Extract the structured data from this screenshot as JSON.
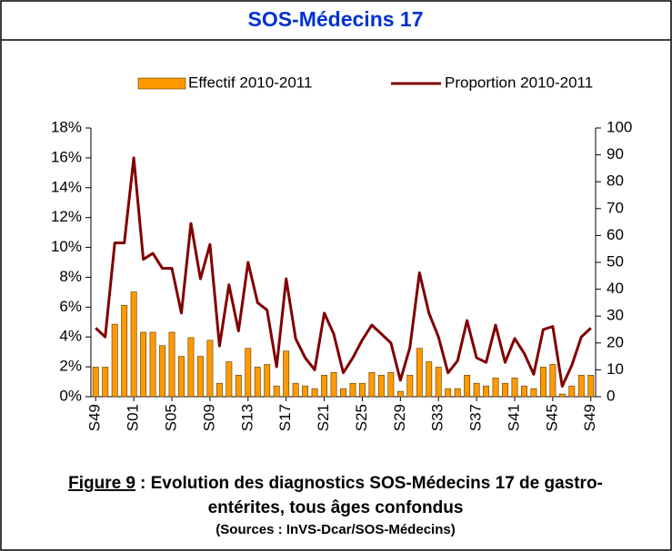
{
  "chart_data": {
    "type": "bar-line",
    "title": "SOS-Médecins 17",
    "categories": [
      "S49",
      null,
      null,
      null,
      "S01",
      null,
      null,
      null,
      "S05",
      null,
      null,
      null,
      "S09",
      null,
      null,
      null,
      "S13",
      null,
      null,
      null,
      "S17",
      null,
      null,
      null,
      "S21",
      null,
      null,
      null,
      "S25",
      null,
      null,
      null,
      "S29",
      null,
      null,
      null,
      "S33",
      null,
      null,
      null,
      "S37",
      null,
      null,
      null,
      "S41",
      null,
      null,
      null,
      "S45",
      null,
      null,
      null,
      "S49"
    ],
    "series": [
      {
        "name": "Effectif 2010-2011",
        "color": "#FF9900",
        "axis": "y2",
        "values": [
          11,
          11,
          27,
          34,
          39,
          24,
          24,
          19,
          24,
          15,
          22,
          15,
          21,
          5,
          13,
          8,
          18,
          11,
          12,
          4,
          17,
          5,
          4,
          3,
          8,
          9,
          3,
          5,
          5,
          9,
          8,
          9,
          2,
          8,
          18,
          13,
          11,
          3,
          3,
          8,
          5,
          4,
          7,
          5,
          7,
          4,
          3,
          11,
          12,
          1,
          4,
          8,
          8
        ]
      },
      {
        "name": "Proportion 2010-2011",
        "color": "#800000",
        "axis": "y",
        "values": [
          4.6,
          4.0,
          10.3,
          10.3,
          16.0,
          9.2,
          9.6,
          8.6,
          8.6,
          5.6,
          11.6,
          7.9,
          10.2,
          3.4,
          7.5,
          4.4,
          9.0,
          6.3,
          5.8,
          2.0,
          7.9,
          3.9,
          2.6,
          1.8,
          5.6,
          4.2,
          1.6,
          2.6,
          3.8,
          4.8,
          4.2,
          3.6,
          1.1,
          3.3,
          8.3,
          5.6,
          4.0,
          1.6,
          2.4,
          5.1,
          2.6,
          2.3,
          4.8,
          2.3,
          3.9,
          2.9,
          1.5,
          4.5,
          4.7,
          0.7,
          2.1,
          4.0,
          4.6
        ]
      }
    ],
    "ylim": [
      0,
      18
    ],
    "yticks": [
      {
        "value": 0,
        "label": "0%"
      },
      {
        "value": 2,
        "label": "2%"
      },
      {
        "value": 4,
        "label": "4%"
      },
      {
        "value": 6,
        "label": "6%"
      },
      {
        "value": 8,
        "label": "8%"
      },
      {
        "value": 10,
        "label": "10%"
      },
      {
        "value": 12,
        "label": "12%"
      },
      {
        "value": 14,
        "label": "14%"
      },
      {
        "value": 16,
        "label": "16%"
      },
      {
        "value": 18,
        "label": "18%"
      }
    ],
    "y2lim": [
      0,
      100
    ],
    "y2ticks": [
      0,
      10,
      20,
      30,
      40,
      50,
      60,
      70,
      80,
      90,
      100
    ],
    "legend": "top",
    "grid": false
  },
  "caption": {
    "label": "Figure 9",
    "lines": [
      ": Evolution des diagnostics SOS-Médecins 17 de gastro-",
      "entérites, tous âges confondus"
    ],
    "source": "(Sources : InVS-Dcar/SOS-Médecins)"
  }
}
